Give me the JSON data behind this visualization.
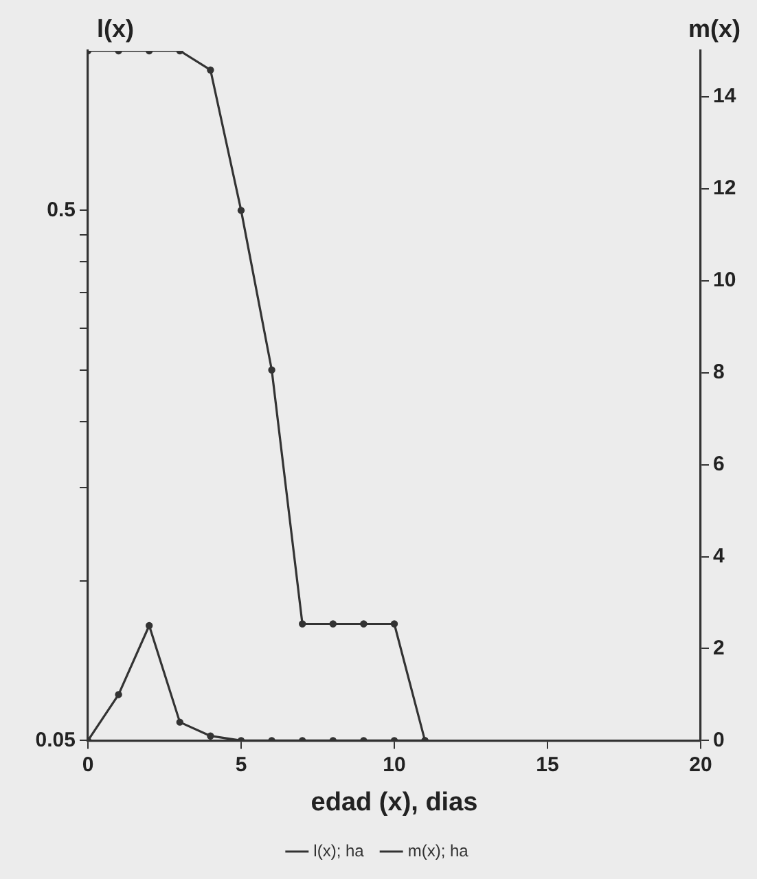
{
  "chart_data": {
    "type": "line",
    "xlabel": "edad (x), dias",
    "ylabel": "l(x)",
    "y2label": "m(x)",
    "x": [
      0,
      1,
      2,
      3,
      4,
      5,
      6,
      7,
      8,
      9,
      10,
      11
    ],
    "series": [
      {
        "name": "l(x); ha",
        "color": "#333333",
        "values": [
          1.0,
          1.0,
          1.0,
          1.0,
          0.92,
          0.5,
          0.25,
          0.083,
          0.083,
          0.083,
          0.083,
          0.05
        ]
      },
      {
        "name": "m(x); ha",
        "color": "#333333",
        "axis": "y2",
        "values": [
          0,
          1.0,
          2.5,
          0.4,
          0.1,
          0,
          0,
          0,
          0,
          0,
          0,
          0
        ]
      }
    ],
    "xlim": [
      0,
      20
    ],
    "xticks": [
      0,
      5,
      10,
      15,
      20
    ],
    "log": "y",
    "ylim": [
      0.05,
      1
    ],
    "yticks": [
      0.05,
      {
        "value": 0.1,
        "label": null
      },
      {
        "value": 0.15,
        "label": null
      },
      {
        "value": 0.2,
        "label": null
      },
      {
        "value": 0.25,
        "label": null
      },
      {
        "value": 0.3,
        "label": null
      },
      {
        "value": 0.35,
        "label": null
      },
      {
        "value": 0.4,
        "label": null
      },
      {
        "value": 0.45,
        "label": null
      },
      0.5
    ],
    "y2lim": [
      0,
      15
    ],
    "y2ticks": [
      0,
      2,
      4,
      6,
      8,
      10,
      12,
      14
    ],
    "grid": false,
    "legend": "bottom",
    "marker": "circle",
    "line_style": "solid"
  }
}
